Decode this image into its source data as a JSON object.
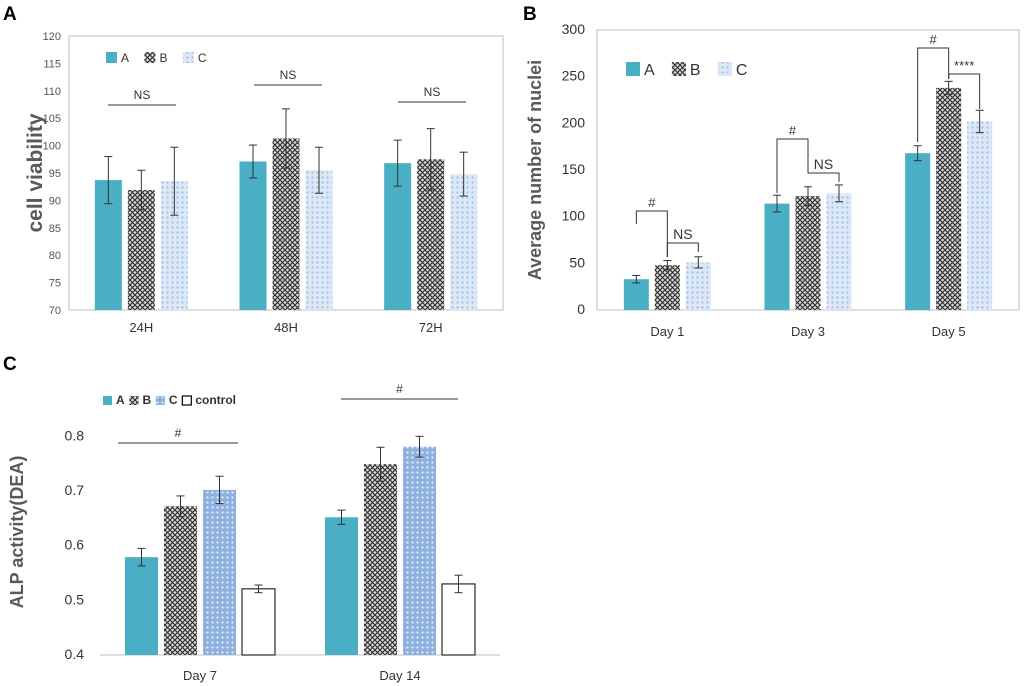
{
  "panel_labels": {
    "a": "A",
    "b": "B",
    "c": "C"
  },
  "colors": {
    "A": "#4aaec5",
    "B": "#555555",
    "C": "#a9c5e8",
    "control": "#ffffff"
  },
  "chart_data": [
    {
      "id": "A",
      "type": "bar",
      "title": "",
      "xlabel": "",
      "ylabel": "cell viability",
      "ylim": [
        70,
        120
      ],
      "yticks": [
        70,
        75,
        80,
        85,
        90,
        95,
        100,
        105,
        110,
        115,
        120
      ],
      "categories": [
        "24H",
        "48H",
        "72H"
      ],
      "series": [
        {
          "name": "A",
          "values": [
            93.7,
            97.1,
            96.8
          ],
          "errors": [
            4.3,
            3.0,
            4.2
          ]
        },
        {
          "name": "B",
          "values": [
            91.9,
            101.3,
            97.5
          ],
          "errors": [
            3.6,
            5.4,
            5.6
          ]
        },
        {
          "name": "C",
          "values": [
            93.5,
            95.5,
            94.8
          ],
          "errors": [
            6.2,
            4.2,
            4.0
          ]
        }
      ],
      "legend": [
        "A",
        "B",
        "C"
      ],
      "annotations": [
        "NS",
        "NS",
        "NS"
      ]
    },
    {
      "id": "B",
      "type": "bar",
      "title": "",
      "xlabel": "",
      "ylabel": "Average number of nuclei",
      "ylim": [
        0,
        300
      ],
      "yticks": [
        0,
        50,
        100,
        150,
        200,
        250,
        300
      ],
      "categories": [
        "Day 1",
        "Day 3",
        "Day 5"
      ],
      "series": [
        {
          "name": "A",
          "values": [
            33,
            114,
            168
          ],
          "errors": [
            4,
            9,
            8
          ]
        },
        {
          "name": "B",
          "values": [
            48,
            122,
            238
          ],
          "errors": [
            5,
            10,
            7
          ]
        },
        {
          "name": "C",
          "values": [
            51,
            125,
            202
          ],
          "errors": [
            6,
            9,
            12
          ]
        }
      ],
      "legend": [
        "A",
        "B",
        "C"
      ],
      "annotations": [
        "#",
        "NS",
        "#",
        "NS",
        "#",
        "****"
      ]
    },
    {
      "id": "C",
      "type": "bar",
      "title": "",
      "xlabel": "",
      "ylabel": "ALP activity(DEA)",
      "ylim": [
        0.4,
        0.85
      ],
      "yticks": [
        0.4,
        0.5,
        0.6,
        0.7,
        0.8
      ],
      "categories": [
        "Day 7",
        "Day 14"
      ],
      "series": [
        {
          "name": "A",
          "values": [
            0.579,
            0.652
          ],
          "errors": [
            0.016,
            0.013
          ]
        },
        {
          "name": "B",
          "values": [
            0.672,
            0.749
          ],
          "errors": [
            0.019,
            0.031
          ]
        },
        {
          "name": "C",
          "values": [
            0.702,
            0.781
          ],
          "errors": [
            0.025,
            0.019
          ]
        },
        {
          "name": "control",
          "values": [
            0.521,
            0.53
          ],
          "errors": [
            0.007,
            0.016
          ]
        }
      ],
      "legend": [
        "A",
        "B",
        "C",
        "control"
      ],
      "annotations": [
        "#",
        "#"
      ]
    }
  ]
}
